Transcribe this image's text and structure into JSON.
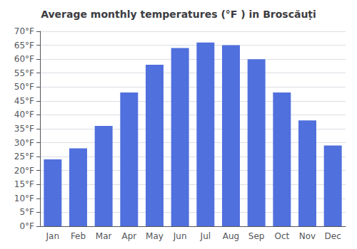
{
  "chart_data": {
    "type": "bar",
    "title": "Average monthly temperatures (°F ) in Broscăuți",
    "categories": [
      "Jan",
      "Feb",
      "Mar",
      "Apr",
      "May",
      "Jun",
      "Jul",
      "Aug",
      "Sep",
      "Oct",
      "Nov",
      "Dec"
    ],
    "values": [
      24,
      28,
      36,
      48,
      58,
      64,
      66,
      65,
      60,
      48,
      38,
      29
    ],
    "ylim": [
      0,
      70
    ],
    "yticks": [
      {
        "value": 0,
        "label": "0°F"
      },
      {
        "value": 5,
        "label": "5°F"
      },
      {
        "value": 10,
        "label": "10°F"
      },
      {
        "value": 15,
        "label": "15°F"
      },
      {
        "value": 20,
        "label": "20°F"
      },
      {
        "value": 25,
        "label": "25°F"
      },
      {
        "value": 30,
        "label": "30°F"
      },
      {
        "value": 35,
        "label": "35°F"
      },
      {
        "value": 40,
        "label": "40°F"
      },
      {
        "value": 45,
        "label": "45°F"
      },
      {
        "value": 50,
        "label": "50°F"
      },
      {
        "value": 55,
        "label": "55°F"
      },
      {
        "value": 60,
        "label": "60°F"
      },
      {
        "value": 65,
        "label": "65°F"
      },
      {
        "value": 70,
        "label": "70°F"
      }
    ],
    "grid": true
  }
}
